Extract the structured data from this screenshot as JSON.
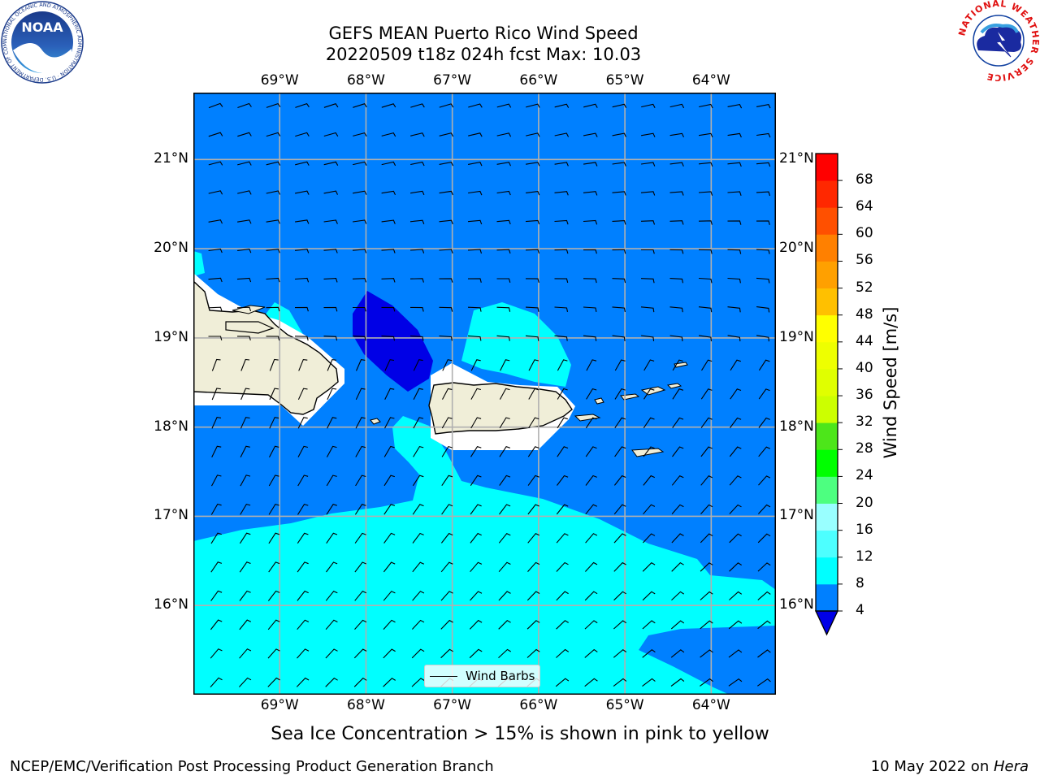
{
  "title": {
    "line1": "GEFS MEAN Puerto Rico Wind Speed",
    "line2": "20220509 t18z 024h fcst   Max: 10.03"
  },
  "map": {
    "lon_ticks": [
      "69°W",
      "68°W",
      "67°W",
      "66°W",
      "65°W",
      "64°W"
    ],
    "lat_ticks": [
      "21°N",
      "20°N",
      "19°N",
      "18°N",
      "17°N",
      "16°N"
    ],
    "lon_values": [
      -69,
      -68,
      -67,
      -66,
      -65,
      -64
    ],
    "lat_values": [
      21,
      20,
      19,
      18,
      17,
      16
    ],
    "lon_range": [
      -70,
      -63.25
    ],
    "lat_range": [
      15,
      21.75
    ],
    "field_colors": {
      "speed_4_8": "#0080ff",
      "speed_8_12": "#00ffff",
      "below_4": "#0000e6",
      "land": "#f0eed8",
      "nodata": "#ffffff"
    },
    "legend": {
      "label": "Wind Barbs"
    }
  },
  "colorbar": {
    "label": "Wind Speed [m/s]",
    "ticks": [
      "68",
      "64",
      "60",
      "56",
      "52",
      "48",
      "44",
      "40",
      "36",
      "32",
      "28",
      "24",
      "20",
      "16",
      "12",
      "8",
      "4"
    ],
    "bins": [
      {
        "from": 4,
        "to": 8,
        "color": "#0080ff"
      },
      {
        "from": 8,
        "to": 12,
        "color": "#00ffff"
      },
      {
        "from": 12,
        "to": 16,
        "color": "#4dffff"
      },
      {
        "from": 16,
        "to": 20,
        "color": "#99ffff"
      },
      {
        "from": 20,
        "to": 24,
        "color": "#4dff80"
      },
      {
        "from": 24,
        "to": 28,
        "color": "#00ff00"
      },
      {
        "from": 28,
        "to": 32,
        "color": "#4de61a"
      },
      {
        "from": 32,
        "to": 36,
        "color": "#ccff00"
      },
      {
        "from": 36,
        "to": 40,
        "color": "#e0ff00"
      },
      {
        "from": 40,
        "to": 44,
        "color": "#eeff00"
      },
      {
        "from": 44,
        "to": 48,
        "color": "#ffff00"
      },
      {
        "from": 48,
        "to": 52,
        "color": "#ffc000"
      },
      {
        "from": 52,
        "to": 56,
        "color": "#ffa000"
      },
      {
        "from": 56,
        "to": 60,
        "color": "#ff8000"
      },
      {
        "from": 60,
        "to": 64,
        "color": "#ff5000"
      },
      {
        "from": 64,
        "to": 68,
        "color": "#ff2800"
      },
      {
        "from": 68,
        "to": 72,
        "color": "#ff0000"
      }
    ],
    "under_color": "#0000e6"
  },
  "caption": "Sea Ice Concentration > 15% is shown in pink to yellow",
  "footer": {
    "left": "NCEP/EMC/Verification Post Processing Product Generation Branch",
    "right_prefix": "10 May 2022 on ",
    "right_host": "Hera"
  },
  "logos": {
    "noaa_text": "NOAA",
    "noaa_ring": "NATIONAL OCEANIC AND ATMOSPHERIC ADMINISTRATION · U.S. DEPARTMENT OF COMMERCE ·",
    "nws_ring": "NATIONAL WEATHER SERVICE",
    "noaa_icon": "noaa-logo-icon",
    "nws_icon": "nws-logo-icon"
  }
}
